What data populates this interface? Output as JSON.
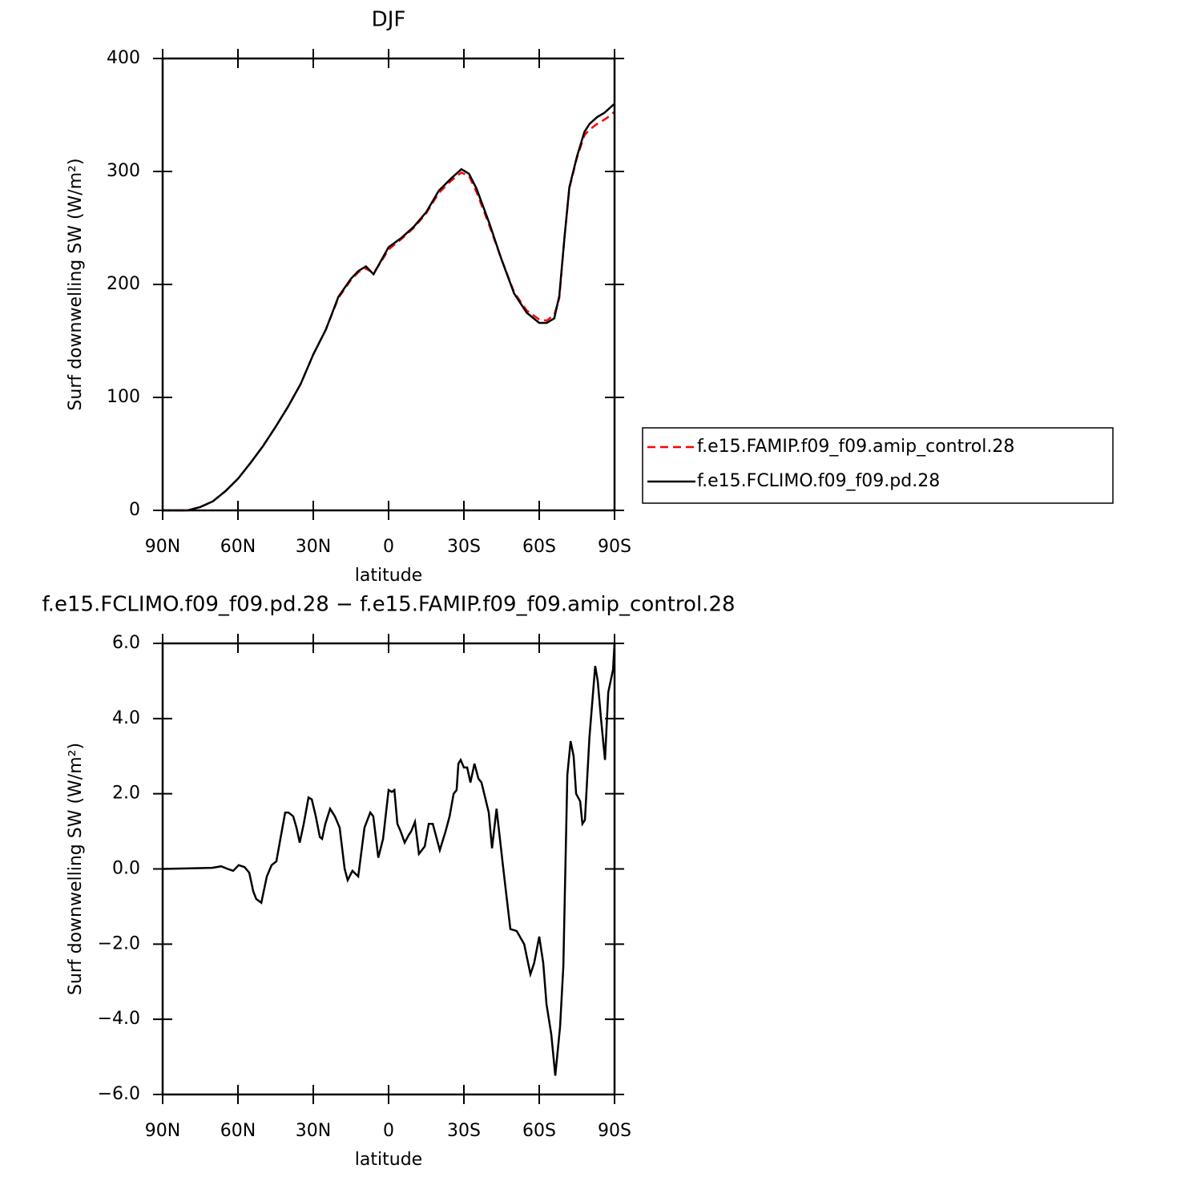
{
  "chart_data": [
    {
      "type": "line",
      "title": "DJF",
      "x_label": "latitude",
      "y_label": "Surf downwelling SW (W/m²)",
      "x": [
        90,
        80,
        75,
        70,
        65,
        60,
        55,
        50,
        45,
        40,
        35,
        30,
        25,
        20,
        15,
        12,
        9,
        6,
        3,
        0,
        -5,
        -10,
        -15,
        -20,
        -25,
        -29,
        -32,
        -35,
        -40,
        -45,
        -50,
        -55,
        -60,
        -63,
        -66,
        -68,
        -70,
        -72,
        -75,
        -78,
        -80,
        -83,
        -86,
        -88,
        -90
      ],
      "xlim": [
        90,
        -90
      ],
      "xticks": [
        {
          "value": 90,
          "label": "90N"
        },
        {
          "value": 60,
          "label": "60N"
        },
        {
          "value": 30,
          "label": "30N"
        },
        0,
        {
          "value": -30,
          "label": "30S"
        },
        {
          "value": -60,
          "label": "60S"
        },
        {
          "value": -90,
          "label": "90S"
        }
      ],
      "ylim": [
        0,
        400
      ],
      "yticks": [
        0,
        100,
        200,
        300,
        400
      ],
      "legend": "right",
      "series": [
        {
          "name": "f.e15.FAMIP.f09_f09.amip_control.28",
          "color": "#ff0000",
          "dash": "dashed",
          "values": [
            0,
            0,
            3,
            8,
            17,
            28,
            42,
            57,
            74,
            92,
            112,
            138,
            160,
            188,
            204,
            211,
            214,
            210,
            220,
            231,
            240,
            250,
            263,
            281,
            292,
            299,
            296,
            282,
            253,
            222,
            193,
            177,
            169,
            168,
            173,
            188,
            240,
            285,
            312,
            332,
            337,
            342,
            346,
            349,
            353
          ]
        },
        {
          "name": "f.e15.FCLIMO.f09_f09.pd.28",
          "color": "#000000",
          "dash": "solid",
          "values": [
            0,
            0,
            3,
            8,
            17,
            28,
            42,
            57,
            74,
            92,
            112,
            138,
            160,
            189,
            205,
            212,
            216,
            209,
            221,
            233,
            241,
            251,
            264,
            283,
            294,
            302,
            298,
            285,
            255,
            222,
            192,
            175,
            166,
            166,
            170,
            190,
            240,
            286,
            313,
            335,
            342,
            348,
            352,
            356,
            360
          ]
        }
      ]
    },
    {
      "type": "line",
      "title": "f.e15.FCLIMO.f09_f09.pd.28 − f.e15.FAMIP.f09_f09.amip_control.28",
      "x_label": "latitude",
      "y_label": "Surf downwelling SW (W/m²)",
      "x": [
        90,
        70.2,
        66.7,
        64.1,
        61.9,
        59.7,
        57.4,
        55.5,
        53.9,
        52.7,
        50.7,
        48.5,
        46.6,
        44.7,
        43.1,
        41.2,
        39.9,
        38,
        36.7,
        35.4,
        33.8,
        31.9,
        30.6,
        29,
        27.4,
        26.5,
        25.2,
        23.3,
        21.4,
        19.5,
        17.5,
        16.3,
        14.4,
        12.1,
        9.6,
        7.3,
        6.1,
        4.1,
        2.2,
        0,
        -1.3,
        -2.3,
        -3.5,
        -4.8,
        -6.4,
        -8,
        -9,
        -10.5,
        -12.1,
        -14.4,
        -16,
        -17.6,
        -20.4,
        -22.7,
        -24.3,
        -25.9,
        -27.1,
        -27.8,
        -28.7,
        -30,
        -31.3,
        -32.6,
        -34.2,
        -35.8,
        -37,
        -39.9,
        -41.2,
        -43,
        -45.7,
        -48.5,
        -51,
        -54,
        -56.5,
        -58,
        -60,
        -61.6,
        -62.9,
        -64.8,
        -66.4,
        -68.3,
        -69.6,
        -71.2,
        -72.5,
        -73.7,
        -74.7,
        -76.3,
        -77.2,
        -78.2,
        -80,
        -82.3,
        -83.3,
        -84.6,
        -86.2,
        -87.5,
        -89.4,
        -90
      ],
      "xlim": [
        90,
        -90
      ],
      "xticks": [
        {
          "value": 90,
          "label": "90N"
        },
        {
          "value": 60,
          "label": "60N"
        },
        {
          "value": 30,
          "label": "30N"
        },
        0,
        {
          "value": -30,
          "label": "30S"
        },
        {
          "value": -60,
          "label": "60S"
        },
        {
          "value": -90,
          "label": "90S"
        }
      ],
      "ylim": [
        -6,
        6
      ],
      "yticks": [
        {
          "value": -6,
          "label": "−6.0"
        },
        {
          "value": -4,
          "label": "−4.0"
        },
        {
          "value": -2,
          "label": "−2.0"
        },
        {
          "value": 0,
          "label": "0.0"
        },
        {
          "value": 2,
          "label": "2.0"
        },
        {
          "value": 4,
          "label": "4.0"
        },
        {
          "value": 6,
          "label": "6.0"
        }
      ],
      "series": [
        {
          "color": "#000000",
          "dash": "solid",
          "values": [
            0,
            0.03,
            0.07,
            0,
            -0.05,
            0.1,
            0.05,
            -0.1,
            -0.6,
            -0.8,
            -0.9,
            -0.2,
            0.1,
            0.2,
            0.8,
            1.5,
            1.5,
            1.4,
            1.1,
            0.7,
            1.2,
            1.9,
            1.85,
            1.4,
            0.85,
            0.8,
            1.2,
            1.6,
            1.4,
            1.1,
            0,
            -0.3,
            -0.05,
            -0.2,
            1.1,
            1.5,
            1.4,
            0.3,
            0.8,
            2.1,
            2.05,
            2.1,
            1.2,
            1.0,
            0.7,
            0.9,
            1.0,
            1.25,
            0.4,
            0.6,
            1.2,
            1.2,
            0.5,
            1.0,
            1.4,
            2.0,
            2.1,
            2.8,
            2.9,
            2.7,
            2.7,
            2.3,
            2.8,
            2.4,
            2.3,
            1.5,
            0.55,
            1.6,
            0,
            -1.6,
            -1.65,
            -2.0,
            -2.8,
            -2.5,
            -1.8,
            -2.5,
            -3.6,
            -4.4,
            -5.5,
            -4.2,
            -2.6,
            2.5,
            3.4,
            3.0,
            2.0,
            1.8,
            1.2,
            1.3,
            3.5,
            5.4,
            5.0,
            4.0,
            2.9,
            4.7,
            5.3,
            6.0
          ]
        }
      ]
    }
  ]
}
